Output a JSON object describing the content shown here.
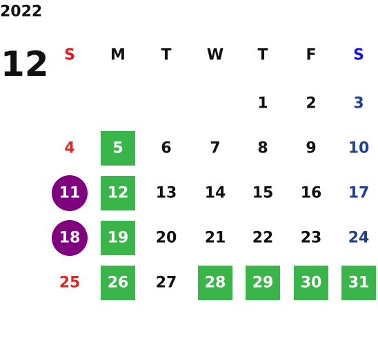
{
  "calendar": {
    "year": "2022",
    "month": "12",
    "weekdays": [
      "S",
      "M",
      "T",
      "W",
      "T",
      "F",
      "S"
    ],
    "weekday_colors": [
      "#e8141c",
      "#111111",
      "#111111",
      "#111111",
      "#111111",
      "#111111",
      "#1414e6"
    ],
    "day_colors": [
      "#d92b25",
      "#111111",
      "#111111",
      "#111111",
      "#111111",
      "#111111",
      "#1f3f8f"
    ],
    "highlight_colors": {
      "box": "#39b54a",
      "circle": "#800080"
    },
    "weeks": [
      [
        null,
        null,
        null,
        null,
        1,
        2,
        3
      ],
      [
        4,
        5,
        6,
        7,
        8,
        9,
        10
      ],
      [
        11,
        12,
        13,
        14,
        15,
        16,
        17
      ],
      [
        18,
        19,
        20,
        21,
        22,
        23,
        24
      ],
      [
        25,
        26,
        27,
        28,
        29,
        30,
        31
      ]
    ],
    "highlights": [
      [
        null,
        null,
        null,
        null,
        null,
        null,
        null
      ],
      [
        null,
        "box",
        null,
        null,
        null,
        null,
        null
      ],
      [
        "circle",
        "box",
        null,
        null,
        null,
        null,
        null
      ],
      [
        "circle",
        "box",
        null,
        null,
        null,
        null,
        null
      ],
      [
        null,
        "box",
        null,
        "box",
        "box",
        "box",
        "box"
      ]
    ]
  }
}
